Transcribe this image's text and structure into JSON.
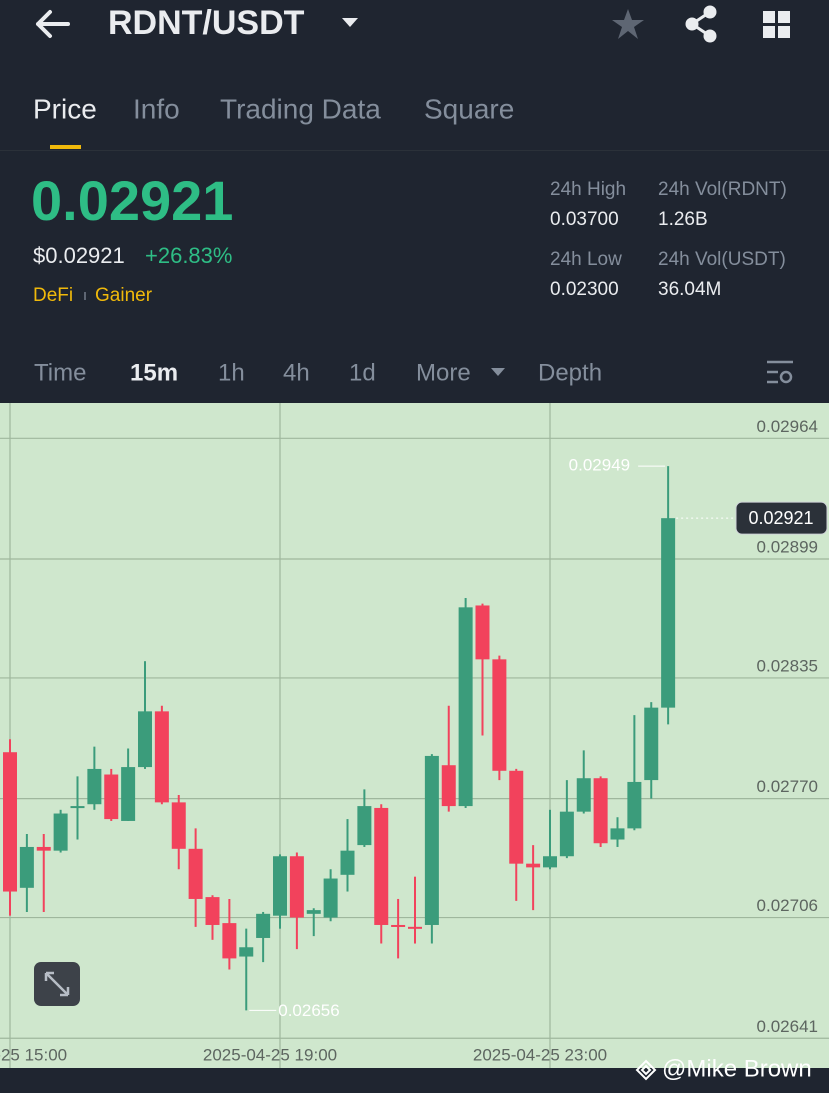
{
  "header": {
    "pair": "RDNT/USDT"
  },
  "tabs": [
    "Price",
    "Info",
    "Trading Data",
    "Square"
  ],
  "price": {
    "last": "0.02921",
    "usd": "$0.02921",
    "change": "+26.83%",
    "tags": [
      "DeFi",
      "Gainer"
    ]
  },
  "stats": [
    {
      "label": "24h High",
      "value": "0.03700"
    },
    {
      "label": "24h Vol(RDNT)",
      "value": "1.26B"
    },
    {
      "label": "24h Low",
      "value": "0.02300"
    },
    {
      "label": "24h Vol(USDT)",
      "value": "36.04M"
    }
  ],
  "intervals": [
    "Time",
    "15m",
    "1h",
    "4h",
    "1d",
    "More",
    "Depth"
  ],
  "chart_data": {
    "type": "candlestick",
    "categories": [
      "2025-04-25 15:00",
      null,
      null,
      null,
      null,
      null,
      null,
      null,
      null,
      null,
      null,
      null,
      null,
      null,
      null,
      null,
      "2025-04-25 19:00",
      null,
      null,
      null,
      null,
      null,
      null,
      null,
      null,
      null,
      null,
      null,
      null,
      null,
      null,
      null,
      "2025-04-25 23:00",
      null,
      null,
      null,
      null,
      null,
      null,
      null
    ],
    "open": [
      0.02795,
      0.02722,
      0.02744,
      0.02742,
      0.02765,
      0.02767,
      0.02783,
      0.02758,
      0.02787,
      0.02817,
      0.02768,
      0.02743,
      0.02717,
      0.02703,
      0.02685,
      0.02695,
      0.02707,
      0.02739,
      0.02708,
      0.02706,
      0.02729,
      0.02745,
      0.02765,
      0.02702,
      0.02701,
      0.02702,
      0.02788,
      0.02766,
      0.02874,
      0.02845,
      0.02785,
      0.02735,
      0.02733,
      0.02739,
      0.02763,
      0.02781,
      0.02748,
      0.02754,
      0.0278,
      0.02819
    ],
    "high": [
      0.02802,
      0.02751,
      0.02751,
      0.02764,
      0.02782,
      0.02798,
      0.02786,
      0.02797,
      0.02844,
      0.0282,
      0.02772,
      0.02754,
      0.02718,
      0.02716,
      0.027,
      0.02709,
      0.0274,
      0.02741,
      0.02711,
      0.02732,
      0.02759,
      0.02775,
      0.02767,
      0.02716,
      0.02728,
      0.02794,
      0.0282,
      0.02878,
      0.02875,
      0.02847,
      0.02786,
      0.02745,
      0.02764,
      0.0278,
      0.02796,
      0.02782,
      0.0276,
      0.02815,
      0.02822,
      0.02949
    ],
    "low": [
      0.02707,
      0.02709,
      0.02709,
      0.02741,
      0.02748,
      0.02764,
      0.02758,
      0.02758,
      0.02786,
      0.02767,
      0.02732,
      0.02701,
      0.02694,
      0.02678,
      0.02656,
      0.02682,
      0.027,
      0.02689,
      0.02696,
      0.02704,
      0.0272,
      0.02744,
      0.02692,
      0.02684,
      0.02692,
      0.02692,
      0.02763,
      0.02765,
      0.02804,
      0.0278,
      0.02715,
      0.0271,
      0.02732,
      0.02738,
      0.02762,
      0.02744,
      0.02744,
      0.02753,
      0.0277,
      0.0281
    ],
    "close": [
      0.0272,
      0.02744,
      0.02742,
      0.02762,
      0.02766,
      0.02786,
      0.02759,
      0.02787,
      0.02817,
      0.02768,
      0.02743,
      0.02716,
      0.02702,
      0.02684,
      0.0269,
      0.02708,
      0.02739,
      0.02706,
      0.0271,
      0.02727,
      0.02742,
      0.02766,
      0.02702,
      0.02701,
      0.027,
      0.02793,
      0.02766,
      0.02873,
      0.02845,
      0.02785,
      0.02735,
      0.02733,
      0.02739,
      0.02763,
      0.02781,
      0.02746,
      0.02754,
      0.02779,
      0.02819,
      0.02921
    ],
    "up_color": "#3b9c7b",
    "down_color": "#f2425c",
    "ylim": [
      0.02625,
      0.02983
    ],
    "yticks": [
      0.02964,
      0.02899,
      0.02835,
      {
        "value": 0.0277,
        "label": "0.02770"
      },
      0.02706,
      0.02641
    ],
    "grid": true
  },
  "watermark": "@Mike Brown"
}
